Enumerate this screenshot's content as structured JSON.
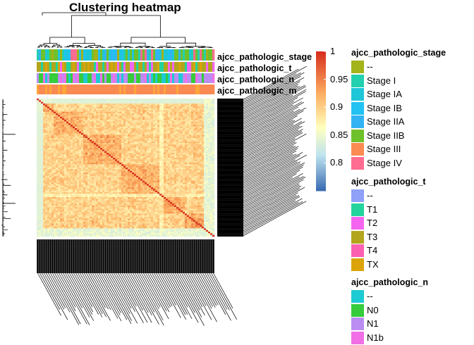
{
  "chart_data": {
    "type": "heatmap",
    "title": "Clustering heatmap",
    "annotation_tracks": [
      "ajcc_pathologic_stage",
      "ajcc_pathologic_t",
      "ajcc_pathologic_n",
      "ajcc_pathologic_m"
    ],
    "color_scale": {
      "min": 0.75,
      "max": 1,
      "ticks": [
        1,
        0.95,
        0.9,
        0.85,
        0.8
      ]
    },
    "legends": [
      {
        "title": "ajcc_pathologic_stage",
        "items": [
          {
            "label": "--",
            "color": "#a3b31a"
          },
          {
            "label": "Stage I",
            "color": "#22d0b0"
          },
          {
            "label": "Stage IA",
            "color": "#1fc6d8"
          },
          {
            "label": "Stage IB",
            "color": "#22c2f2"
          },
          {
            "label": "Stage IIA",
            "color": "#32b4f4"
          },
          {
            "label": "Stage IIB",
            "color": "#6fc12b"
          },
          {
            "label": "Stage III",
            "color": "#fb8a52"
          },
          {
            "label": "Stage IV",
            "color": "#ff6c91"
          }
        ]
      },
      {
        "title": "ajcc_pathologic_t",
        "items": [
          {
            "label": "--",
            "color": "#8ea0f8"
          },
          {
            "label": "T1",
            "color": "#22d49c"
          },
          {
            "label": "T2",
            "color": "#f365f0"
          },
          {
            "label": "T3",
            "color": "#b3a51c"
          },
          {
            "label": "T4",
            "color": "#fb61b0"
          },
          {
            "label": "TX",
            "color": "#dca40a"
          }
        ]
      },
      {
        "title": "ajcc_pathologic_n",
        "items": [
          {
            "label": "--",
            "color": "#1ecad3"
          },
          {
            "label": "N0",
            "color": "#36cc3c"
          },
          {
            "label": "N1",
            "color": "#bb8cf2"
          },
          {
            "label": "N1b",
            "color": "#f16fe6"
          }
        ]
      }
    ],
    "colors": {
      "high": "#d7301f",
      "mid": "#ffffbf",
      "low": "#3b6fb4"
    }
  }
}
